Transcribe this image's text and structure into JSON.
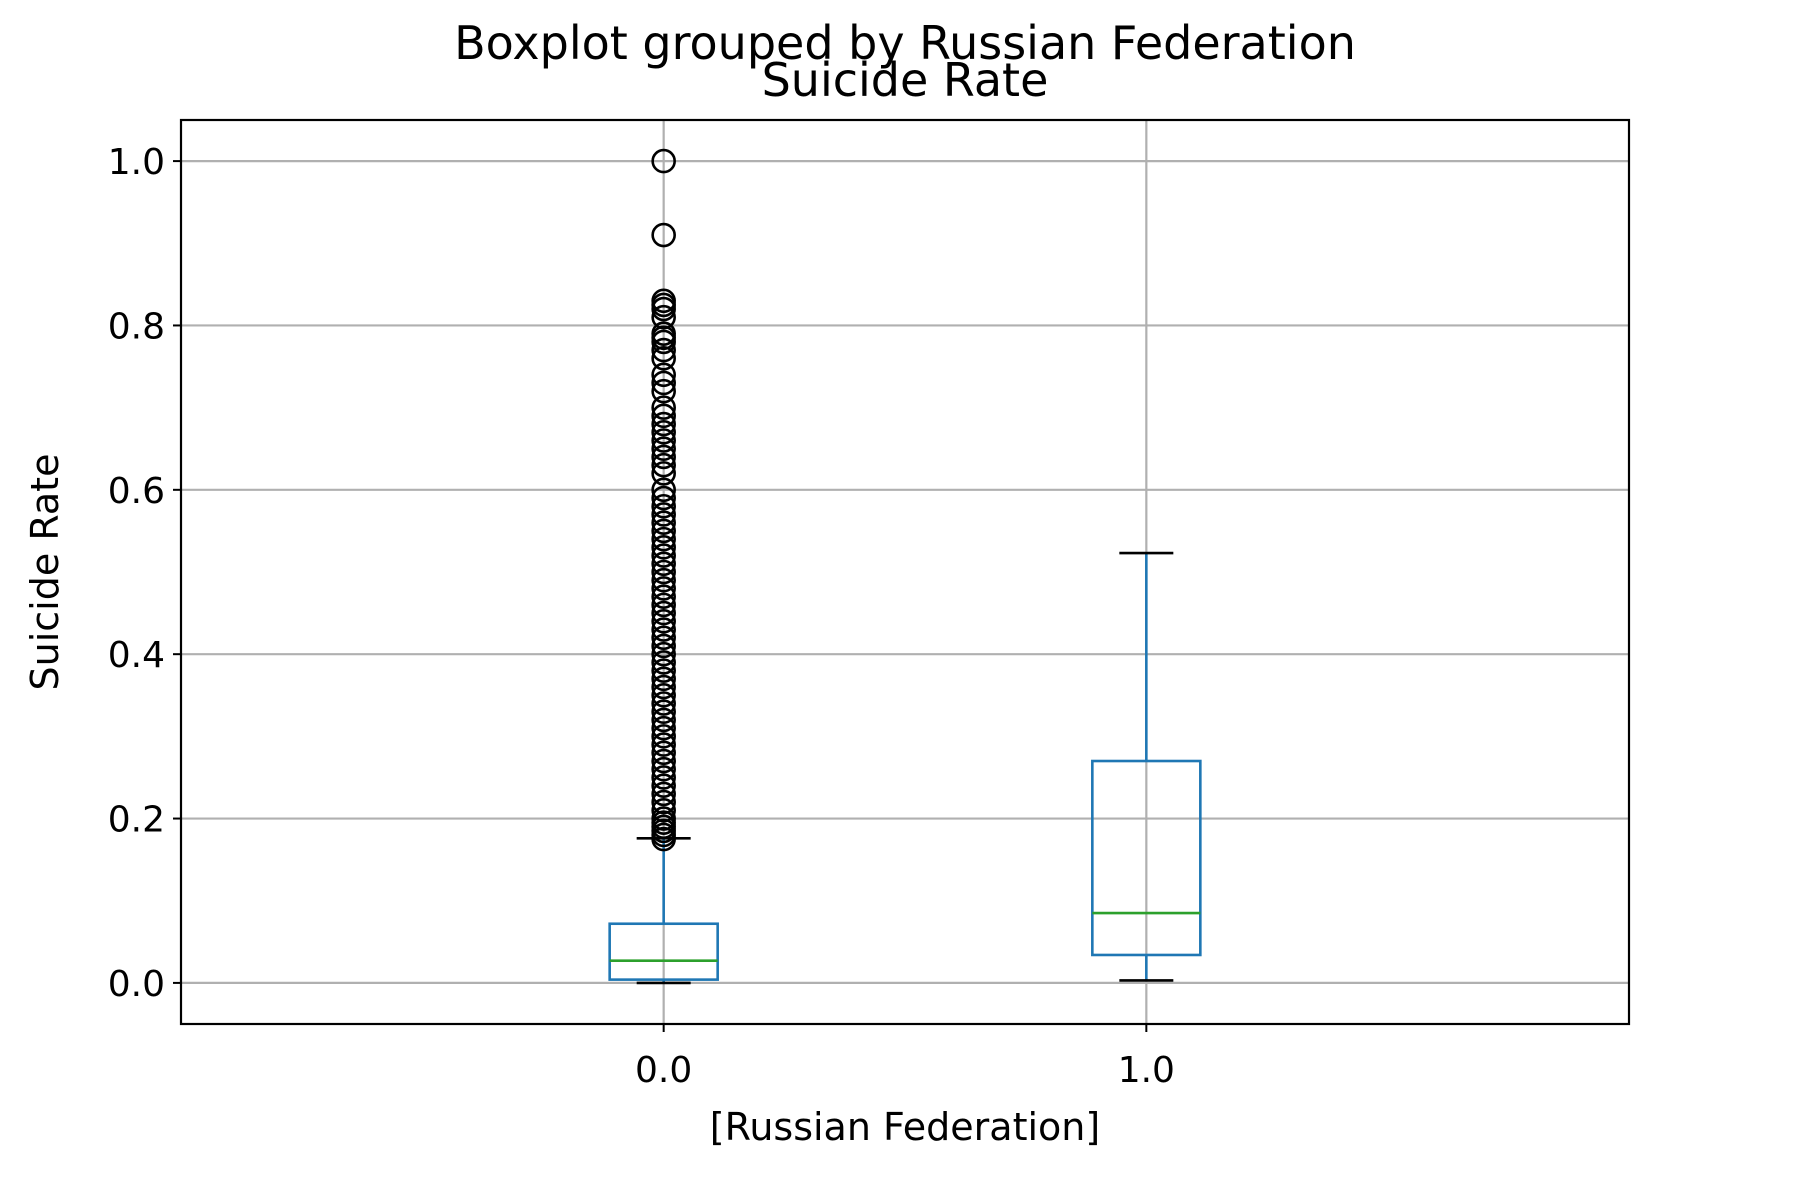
{
  "chart_data": {
    "type": "box",
    "suptitle": "Boxplot grouped by Russian Federation",
    "title": "Suicide Rate",
    "xlabel": "[Russian Federation]",
    "ylabel": "Suicide Rate",
    "ylim": [
      -0.05,
      1.05
    ],
    "yticks": [
      0.0,
      0.2,
      0.4,
      0.6,
      0.8,
      1.0
    ],
    "ytick_labels": [
      "0.0",
      "0.2",
      "0.4",
      "0.6",
      "0.8",
      "1.0"
    ],
    "grid": true,
    "categories": [
      "0.0",
      "1.0"
    ],
    "boxes": [
      {
        "category": "0.0",
        "whisker_low": 0.0,
        "q1": 0.004,
        "median": 0.027,
        "q3": 0.072,
        "whisker_high": 0.176,
        "outliers": [
          1.0,
          0.91,
          0.83,
          0.825,
          0.82,
          0.81,
          0.79,
          0.785,
          0.78,
          0.77,
          0.76,
          0.74,
          0.73,
          0.72,
          0.7,
          0.69,
          0.68,
          0.67,
          0.66,
          0.65,
          0.64,
          0.63,
          0.62,
          0.6,
          0.59,
          0.58,
          0.57,
          0.56,
          0.55,
          0.54,
          0.53,
          0.52,
          0.51,
          0.5,
          0.49,
          0.48,
          0.47,
          0.46,
          0.45,
          0.44,
          0.43,
          0.42,
          0.41,
          0.4,
          0.39,
          0.38,
          0.37,
          0.36,
          0.35,
          0.34,
          0.33,
          0.32,
          0.31,
          0.3,
          0.29,
          0.28,
          0.27,
          0.26,
          0.25,
          0.24,
          0.23,
          0.22,
          0.21,
          0.2,
          0.195,
          0.19,
          0.185,
          0.18,
          0.175
        ]
      },
      {
        "category": "1.0",
        "whisker_low": 0.003,
        "q1": 0.034,
        "median": 0.085,
        "q3": 0.27,
        "whisker_high": 0.523,
        "outliers": []
      }
    ],
    "colors": {
      "box": "#1f77b4",
      "median": "#2ca02c",
      "whisker_cap": "#000000",
      "outlier": "#000000",
      "grid": "#b0b0b0"
    }
  }
}
